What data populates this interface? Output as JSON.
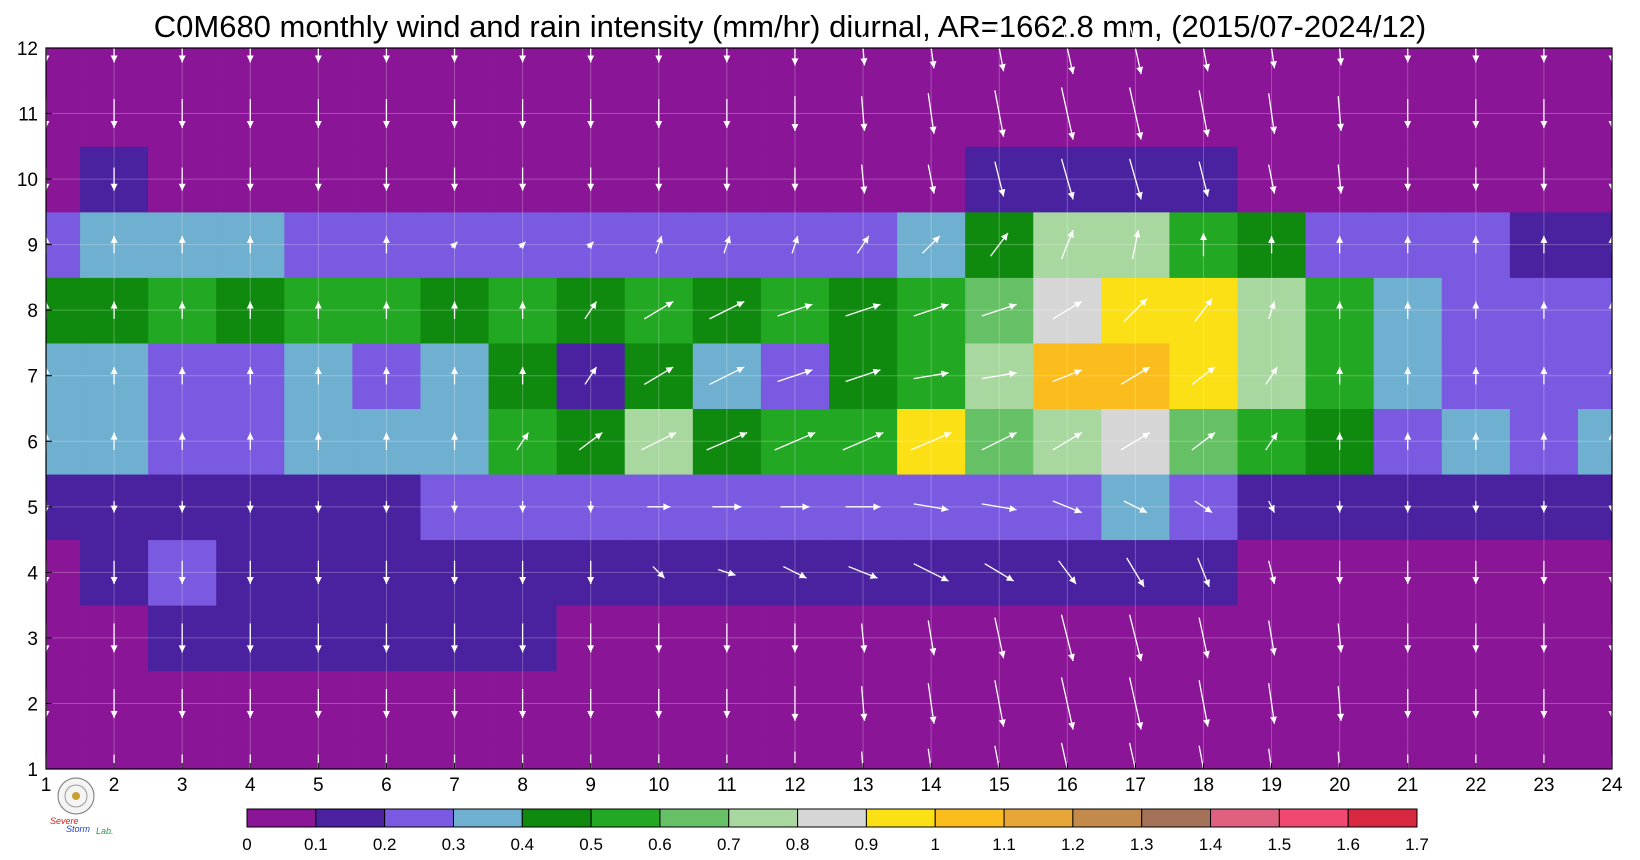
{
  "chart_data": {
    "type": "heatmap",
    "title": "C0M680 monthly wind and rain intensity (mm/hr) diurnal, AR=1662.8 mm, (2015/07-2024/12)",
    "x_ticks": [
      "1",
      "2",
      "3",
      "4",
      "5",
      "6",
      "7",
      "8",
      "9",
      "10",
      "11",
      "12",
      "13",
      "14",
      "15",
      "16",
      "17",
      "18",
      "19",
      "20",
      "21",
      "22",
      "23",
      "24"
    ],
    "y_ticks": [
      "1",
      "2",
      "3",
      "4",
      "5",
      "6",
      "7",
      "8",
      "9",
      "10",
      "11",
      "12"
    ],
    "xlim": [
      1,
      24
    ],
    "ylim": [
      1,
      12
    ],
    "grid": true,
    "colorbar": {
      "placement": "bottom",
      "levels": [
        0,
        0.1,
        0.2,
        0.3,
        0.4,
        0.5,
        0.6,
        0.7,
        0.8,
        0.9,
        1,
        1.1,
        1.2,
        1.3,
        1.4,
        1.5,
        1.6,
        1.7
      ],
      "labels": [
        "0",
        "0.1",
        "0.2",
        "0.3",
        "0.4",
        "0.5",
        "0.6",
        "0.7",
        "0.8",
        "0.9",
        "1",
        "1.1",
        "1.2",
        "1.3",
        "1.4",
        "1.5",
        "1.6",
        "1.7"
      ],
      "colors": [
        "#8a1596",
        "#4a22a0",
        "#7a5ae0",
        "#6fafd0",
        "#0f8a0f",
        "#22a822",
        "#66c066",
        "#a8d8a0",
        "#d6d6d6",
        "#fce016",
        "#fbbc1d",
        "#e8a638",
        "#c48a4c",
        "#a47258",
        "#e06080",
        "#f04870",
        "#d8283f"
      ]
    },
    "rain_intensity_rows": [
      {
        "month": 1,
        "values": [
          0.03,
          0.02,
          0.02,
          0.02,
          0.02,
          0.03,
          0.02,
          0.02,
          0.02,
          0.04,
          0.03,
          0.02,
          0.02,
          0.02,
          0.02,
          0.02,
          0.02,
          0.02,
          0.02,
          0.02,
          0.02,
          0.02,
          0.02,
          0.02
        ]
      },
      {
        "month": 2,
        "values": [
          0.03,
          0.03,
          0.03,
          0.03,
          0.03,
          0.03,
          0.03,
          0.03,
          0.03,
          0.03,
          0.03,
          0.03,
          0.03,
          0.03,
          0.03,
          0.03,
          0.03,
          0.03,
          0.03,
          0.03,
          0.03,
          0.03,
          0.03,
          0.03
        ]
      },
      {
        "month": 3,
        "values": [
          0.05,
          0.06,
          0.1,
          0.11,
          0.11,
          0.12,
          0.11,
          0.1,
          0.09,
          0.06,
          0.06,
          0.06,
          0.06,
          0.06,
          0.06,
          0.06,
          0.06,
          0.06,
          0.06,
          0.06,
          0.06,
          0.08,
          0.06,
          0.06
        ]
      },
      {
        "month": 4,
        "values": [
          0.09,
          0.1,
          0.2,
          0.14,
          0.14,
          0.14,
          0.15,
          0.18,
          0.12,
          0.12,
          0.12,
          0.12,
          0.12,
          0.12,
          0.12,
          0.13,
          0.13,
          0.14,
          0.09,
          0.09,
          0.08,
          0.08,
          0.08,
          0.09
        ]
      },
      {
        "month": 5,
        "values": [
          0.15,
          0.13,
          0.16,
          0.18,
          0.17,
          0.16,
          0.22,
          0.28,
          0.24,
          0.24,
          0.2,
          0.2,
          0.22,
          0.24,
          0.2,
          0.28,
          0.3,
          0.28,
          0.15,
          0.12,
          0.1,
          0.1,
          0.12,
          0.12
        ]
      },
      {
        "month": 6,
        "values": [
          0.32,
          0.3,
          0.25,
          0.25,
          0.32,
          0.3,
          0.38,
          0.55,
          0.45,
          0.75,
          0.4,
          0.5,
          0.58,
          0.95,
          0.62,
          0.72,
          0.82,
          0.62,
          0.58,
          0.42,
          0.28,
          0.3,
          0.28,
          0.3
        ]
      },
      {
        "month": 7,
        "values": [
          0.32,
          0.3,
          0.28,
          0.28,
          0.32,
          0.28,
          0.3,
          0.42,
          0.18,
          0.48,
          0.38,
          0.2,
          0.48,
          0.55,
          0.72,
          1.05,
          1.08,
          0.98,
          0.75,
          0.55,
          0.32,
          0.28,
          0.22,
          0.22
        ]
      },
      {
        "month": 8,
        "values": [
          0.42,
          0.45,
          0.52,
          0.48,
          0.52,
          0.55,
          0.48,
          0.52,
          0.45,
          0.55,
          0.48,
          0.52,
          0.48,
          0.5,
          0.68,
          0.85,
          0.98,
          0.98,
          0.78,
          0.58,
          0.3,
          0.22,
          0.2,
          0.22
        ]
      },
      {
        "month": 9,
        "values": [
          0.28,
          0.32,
          0.3,
          0.3,
          0.25,
          0.25,
          0.28,
          0.25,
          0.2,
          0.25,
          0.25,
          0.28,
          0.25,
          0.3,
          0.42,
          0.78,
          0.7,
          0.55,
          0.42,
          0.25,
          0.25,
          0.2,
          0.18,
          0.15
        ]
      },
      {
        "month": 10,
        "values": [
          0.08,
          0.12,
          0.08,
          0.08,
          0.06,
          0.06,
          0.08,
          0.08,
          0.06,
          0.06,
          0.06,
          0.06,
          0.06,
          0.08,
          0.1,
          0.12,
          0.12,
          0.1,
          0.08,
          0.06,
          0.06,
          0.06,
          0.06,
          0.06
        ]
      },
      {
        "month": 11,
        "values": [
          0.04,
          0.04,
          0.04,
          0.04,
          0.04,
          0.04,
          0.04,
          0.04,
          0.04,
          0.04,
          0.04,
          0.04,
          0.04,
          0.04,
          0.04,
          0.04,
          0.04,
          0.04,
          0.04,
          0.04,
          0.04,
          0.04,
          0.04,
          0.04
        ]
      },
      {
        "month": 12,
        "values": [
          0.03,
          0.03,
          0.03,
          0.03,
          0.03,
          0.03,
          0.03,
          0.03,
          0.03,
          0.03,
          0.03,
          0.03,
          0.03,
          0.03,
          0.03,
          0.03,
          0.03,
          0.03,
          0.03,
          0.03,
          0.03,
          0.03,
          0.03,
          0.03
        ]
      }
    ],
    "wind_vectors": {
      "hours": [
        1,
        2,
        3,
        4,
        5,
        6,
        7,
        8,
        9,
        10,
        11,
        12,
        13,
        14,
        15,
        16,
        17,
        18,
        19,
        20,
        21,
        22,
        23,
        24
      ],
      "months": [
        1,
        2,
        3,
        4,
        5,
        6,
        7,
        8,
        9,
        10,
        11,
        12
      ],
      "direction": "mostly southward, turning north-eastward around months 5-8 and hours 9-19",
      "u": [
        [
          0,
          0,
          0,
          0,
          0,
          0,
          0,
          0,
          0,
          0,
          0,
          0,
          0.05,
          0.1,
          0.15,
          0.2,
          0.2,
          0.15,
          0.1,
          0.05,
          0,
          0,
          0,
          0
        ],
        [
          0,
          0,
          0,
          0,
          0,
          0,
          0,
          0,
          0,
          0,
          0,
          0,
          0.05,
          0.1,
          0.15,
          0.2,
          0.2,
          0.15,
          0.1,
          0.05,
          0,
          0,
          0,
          0
        ],
        [
          0,
          0,
          0,
          0,
          0,
          0,
          0,
          0,
          0,
          0,
          0,
          0,
          0.05,
          0.1,
          0.15,
          0.2,
          0.2,
          0.15,
          0.1,
          0.05,
          0,
          0,
          0,
          0
        ],
        [
          0,
          0,
          0,
          0,
          0,
          0,
          0,
          0,
          0,
          0.2,
          0.3,
          0.4,
          0.5,
          0.6,
          0.5,
          0.3,
          0.3,
          0.2,
          0.1,
          0,
          0,
          0,
          0,
          0
        ],
        [
          0,
          0,
          0,
          0,
          0,
          0,
          0,
          0,
          0,
          0.4,
          0.5,
          0.5,
          0.6,
          0.6,
          0.6,
          0.5,
          0.4,
          0.3,
          0.1,
          0,
          0,
          0,
          0,
          0
        ],
        [
          0,
          0,
          0,
          0,
          0,
          0,
          0,
          0.2,
          0.4,
          0.6,
          0.7,
          0.7,
          0.7,
          0.7,
          0.6,
          0.5,
          0.5,
          0.4,
          0.2,
          0,
          0,
          0,
          0,
          0
        ],
        [
          0,
          0,
          0,
          0,
          0,
          0,
          0,
          0,
          0.2,
          0.5,
          0.6,
          0.6,
          0.6,
          0.6,
          0.6,
          0.5,
          0.5,
          0.4,
          0.2,
          0,
          0,
          0,
          0,
          0
        ],
        [
          0,
          0,
          0,
          0,
          0,
          0,
          0,
          0,
          0.2,
          0.5,
          0.6,
          0.6,
          0.6,
          0.6,
          0.6,
          0.5,
          0.4,
          0.3,
          0.1,
          0,
          0,
          0,
          0,
          0
        ],
        [
          0,
          0,
          0,
          0,
          0,
          0,
          0.1,
          0.1,
          0.1,
          0.1,
          0.1,
          0.1,
          0.2,
          0.3,
          0.3,
          0.2,
          0.1,
          0,
          0,
          0,
          0,
          0,
          0,
          0
        ],
        [
          0,
          0,
          0,
          0,
          0,
          0,
          0,
          0,
          0,
          0,
          0,
          0,
          0.05,
          0.1,
          0.15,
          0.2,
          0.2,
          0.15,
          0.1,
          0.05,
          0,
          0,
          0,
          0
        ],
        [
          0,
          0,
          0,
          0,
          0,
          0,
          0,
          0,
          0,
          0,
          0,
          0,
          0.05,
          0.1,
          0.15,
          0.2,
          0.2,
          0.15,
          0.1,
          0.05,
          0,
          0,
          0,
          0
        ],
        [
          0,
          0,
          0,
          0,
          0,
          0,
          0,
          0,
          0,
          0,
          0,
          0,
          0.05,
          0.1,
          0.15,
          0.2,
          0.2,
          0.15,
          0.1,
          0.05,
          0,
          0,
          0,
          0
        ]
      ],
      "v": [
        [
          -0.5,
          -0.5,
          -0.5,
          -0.5,
          -0.5,
          -0.5,
          -0.5,
          -0.5,
          -0.5,
          -0.5,
          -0.5,
          -0.6,
          -0.6,
          -0.7,
          -0.8,
          -0.9,
          -0.9,
          -0.8,
          -0.7,
          -0.6,
          -0.5,
          -0.5,
          -0.5,
          -0.5
        ],
        [
          -0.5,
          -0.5,
          -0.5,
          -0.5,
          -0.5,
          -0.5,
          -0.5,
          -0.5,
          -0.5,
          -0.5,
          -0.5,
          -0.6,
          -0.6,
          -0.7,
          -0.8,
          -0.9,
          -0.9,
          -0.8,
          -0.7,
          -0.6,
          -0.5,
          -0.5,
          -0.5,
          -0.5
        ],
        [
          -0.5,
          -0.5,
          -0.5,
          -0.5,
          -0.5,
          -0.5,
          -0.5,
          -0.5,
          -0.5,
          -0.5,
          -0.5,
          -0.5,
          -0.5,
          -0.6,
          -0.7,
          -0.8,
          -0.8,
          -0.7,
          -0.6,
          -0.5,
          -0.5,
          -0.5,
          -0.5,
          -0.5
        ],
        [
          -0.4,
          -0.4,
          -0.4,
          -0.4,
          -0.4,
          -0.4,
          -0.4,
          -0.4,
          -0.4,
          -0.2,
          -0.1,
          -0.2,
          -0.2,
          -0.3,
          -0.3,
          -0.4,
          -0.5,
          -0.5,
          -0.4,
          -0.4,
          -0.4,
          -0.4,
          -0.4,
          -0.4
        ],
        [
          -0.2,
          -0.2,
          -0.2,
          -0.2,
          -0.2,
          -0.2,
          -0.2,
          -0.2,
          -0.2,
          0,
          0,
          0,
          0,
          -0.1,
          -0.1,
          -0.2,
          -0.2,
          -0.2,
          -0.2,
          -0.2,
          -0.2,
          -0.2,
          -0.2,
          -0.2
        ],
        [
          0.3,
          0.3,
          0.3,
          0.3,
          0.3,
          0.3,
          0.3,
          0.3,
          0.3,
          0.3,
          0.3,
          0.3,
          0.3,
          0.3,
          0.3,
          0.3,
          0.3,
          0.3,
          0.3,
          0.3,
          0.3,
          0.3,
          0.3,
          0.3
        ],
        [
          0.3,
          0.3,
          0.3,
          0.3,
          0.3,
          0.3,
          0.3,
          0.3,
          0.3,
          0.3,
          0.3,
          0.2,
          0.2,
          0.1,
          0.1,
          0.2,
          0.3,
          0.3,
          0.3,
          0.3,
          0.3,
          0.3,
          0.3,
          0.3
        ],
        [
          0.3,
          0.3,
          0.3,
          0.3,
          0.3,
          0.3,
          0.3,
          0.3,
          0.3,
          0.3,
          0.3,
          0.2,
          0.2,
          0.2,
          0.2,
          0.3,
          0.4,
          0.4,
          0.3,
          0.3,
          0.3,
          0.3,
          0.3,
          0.3
        ],
        [
          0.3,
          0.3,
          0.3,
          0.3,
          0,
          0.3,
          0.1,
          0.1,
          0.1,
          0.3,
          0.3,
          0.3,
          0.3,
          0.3,
          0.4,
          0.5,
          0.5,
          0.4,
          0.3,
          0.3,
          0.3,
          0.3,
          0.3,
          0.3
        ],
        [
          -0.4,
          -0.4,
          -0.4,
          -0.4,
          -0.4,
          -0.4,
          -0.4,
          -0.4,
          -0.4,
          -0.4,
          -0.4,
          -0.4,
          -0.5,
          -0.5,
          -0.6,
          -0.7,
          -0.7,
          -0.6,
          -0.5,
          -0.5,
          -0.4,
          -0.4,
          -0.4,
          -0.4
        ],
        [
          -0.5,
          -0.5,
          -0.5,
          -0.5,
          -0.5,
          -0.5,
          -0.5,
          -0.5,
          -0.5,
          -0.5,
          -0.5,
          -0.6,
          -0.6,
          -0.7,
          -0.8,
          -0.9,
          -0.9,
          -0.8,
          -0.7,
          -0.6,
          -0.5,
          -0.5,
          -0.5,
          -0.5
        ],
        [
          -0.5,
          -0.5,
          -0.5,
          -0.5,
          -0.5,
          -0.5,
          -0.5,
          -0.5,
          -0.5,
          -0.5,
          -0.5,
          -0.6,
          -0.6,
          -0.7,
          -0.8,
          -0.9,
          -0.9,
          -0.8,
          -0.7,
          -0.6,
          -0.5,
          -0.5,
          -0.5,
          -0.5
        ]
      ]
    }
  },
  "logo": {
    "lab_text_1": "Severe",
    "lab_text_2": "Storm",
    "lab_text_3": "Lab."
  }
}
